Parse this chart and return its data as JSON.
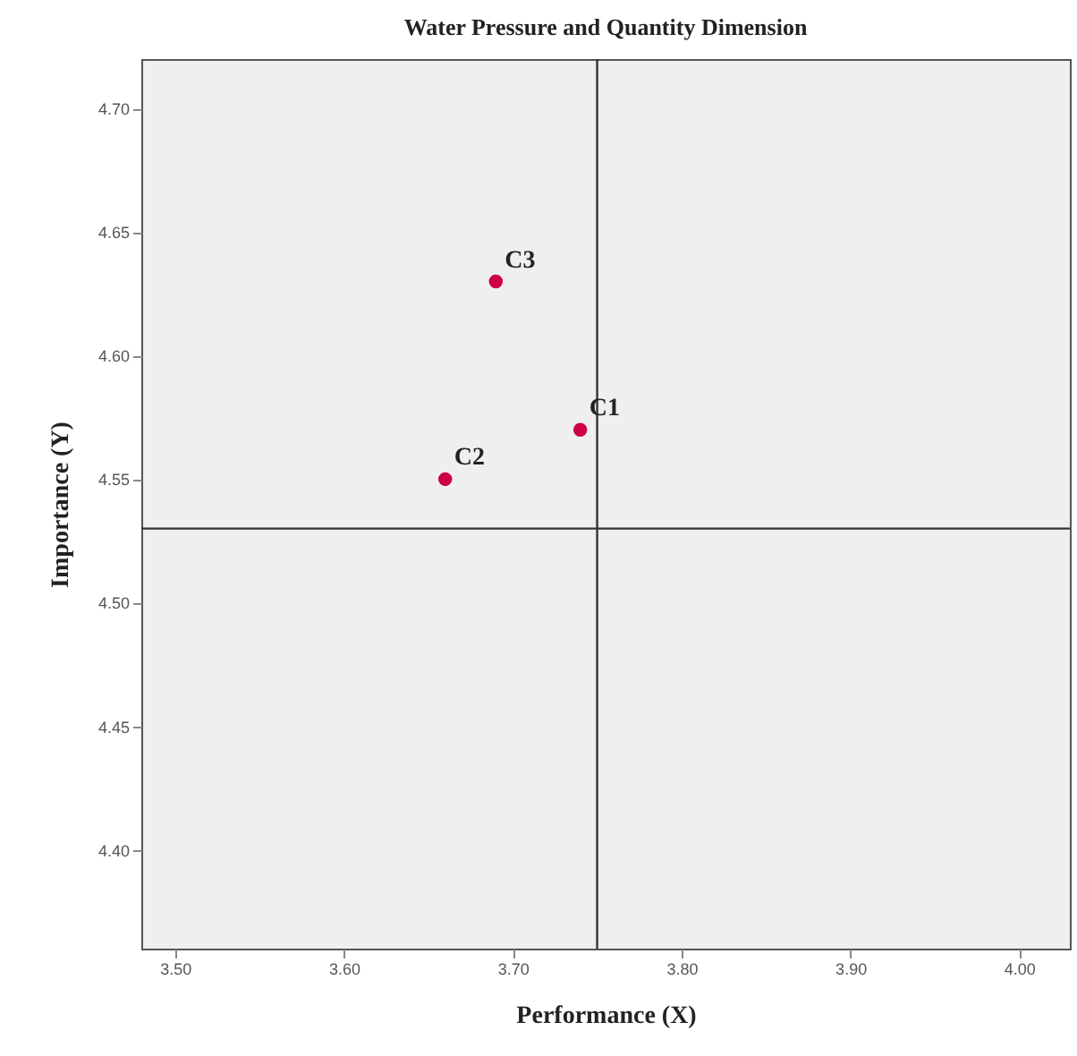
{
  "chart_data": {
    "type": "scatter",
    "title": "Water Pressure and Quantity Dimension",
    "xlabel": "Performance (X)",
    "ylabel": "Importance (Y)",
    "x": [
      3.74,
      3.66,
      3.69
    ],
    "series": [
      {
        "color": "#cc0044",
        "values": [
          4.57,
          4.55,
          4.63
        ]
      }
    ],
    "xlim": [
      3.48,
      4.03
    ],
    "xticks": [
      {
        "value": 3.5,
        "label": "3.50"
      },
      {
        "value": 3.6,
        "label": "3.60"
      },
      {
        "value": 3.7,
        "label": "3.70"
      },
      {
        "value": 3.8,
        "label": "3.80"
      },
      {
        "value": 3.9,
        "label": "3.90"
      },
      {
        "value": 4.0,
        "label": "4.00"
      }
    ],
    "ylim": [
      4.36,
      4.72
    ],
    "yticks": [
      {
        "value": 4.4,
        "label": "4.40"
      },
      {
        "value": 4.45,
        "label": "4.45"
      },
      {
        "value": 4.5,
        "label": "4.50"
      },
      {
        "value": 4.55,
        "label": "4.55"
      },
      {
        "value": 4.6,
        "label": "4.60"
      },
      {
        "value": 4.65,
        "label": "4.65"
      },
      {
        "value": 4.7,
        "label": "4.70"
      }
    ],
    "ref_lines": [
      {
        "axis": "x",
        "value": 3.75,
        "color": "#333333"
      },
      {
        "axis": "y",
        "value": 4.53,
        "color": "#333333"
      }
    ],
    "annotations": [
      {
        "text": "C1",
        "x": 3.74,
        "y": 4.57
      },
      {
        "text": "C2",
        "x": 3.66,
        "y": 4.55
      },
      {
        "text": "C3",
        "x": 3.69,
        "y": 4.63
      }
    ],
    "grid": false,
    "legend": false,
    "marker": "circle"
  }
}
